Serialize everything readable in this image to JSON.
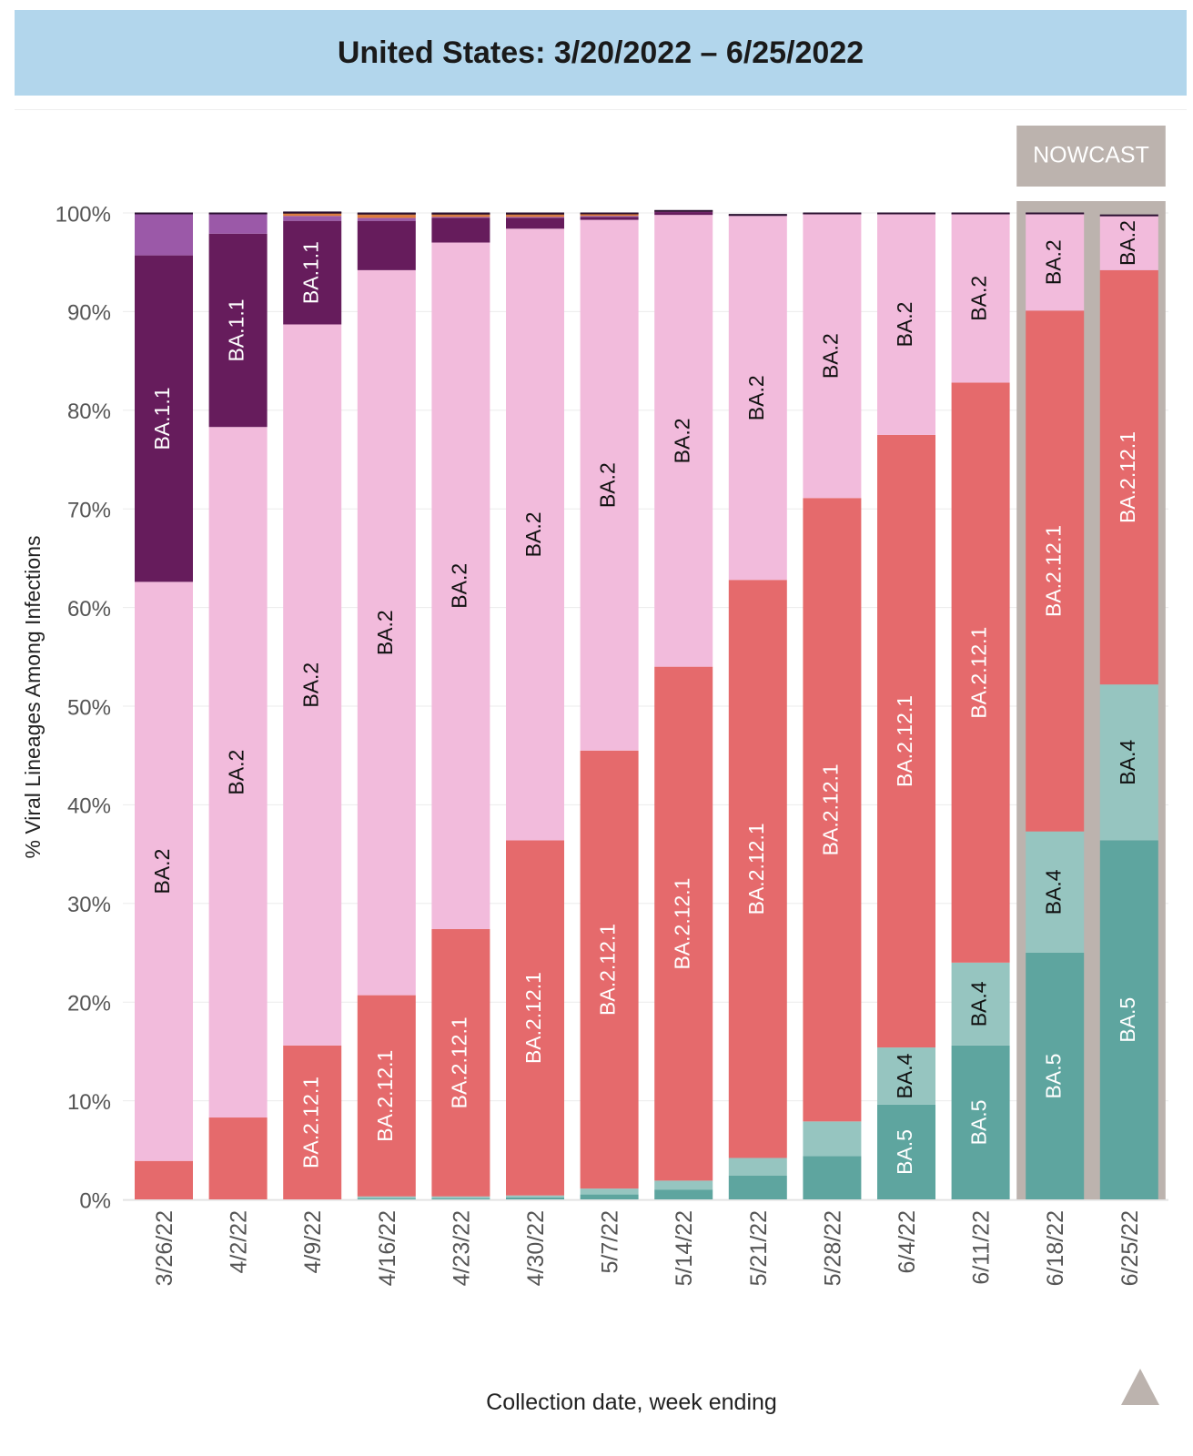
{
  "header": {
    "title": "United States: 3/20/2022 – 6/25/2022"
  },
  "nowcast_label": "NOWCAST",
  "scroll_button": {
    "icon": "triangle-up-icon"
  },
  "chart_data": {
    "type": "bar",
    "stacked": true,
    "ylabel": "% Viral Lineages Among Infections",
    "xlabel": "Collection date, week ending",
    "ylim": [
      0,
      100
    ],
    "yticks": [
      "0%",
      "10%",
      "20%",
      "30%",
      "40%",
      "50%",
      "60%",
      "70%",
      "80%",
      "90%",
      "100%"
    ],
    "categories": [
      "3/26/22",
      "4/2/22",
      "4/9/22",
      "4/16/22",
      "4/23/22",
      "4/30/22",
      "5/7/22",
      "5/14/22",
      "5/21/22",
      "5/28/22",
      "6/4/22",
      "6/11/22",
      "6/18/22",
      "6/25/22"
    ],
    "nowcast_categories": [
      "6/18/22",
      "6/25/22"
    ],
    "series": [
      {
        "name": "BA.5",
        "color": "#5ea59f",
        "label_color": "#ffffff",
        "values": [
          0,
          0,
          0,
          0.1,
          0.1,
          0.2,
          0.5,
          1.0,
          2.4,
          4.4,
          9.6,
          15.6,
          25.0,
          36.4
        ]
      },
      {
        "name": "BA.4",
        "color": "#96c5c0",
        "label_color": "#111111",
        "values": [
          0,
          0,
          0,
          0.2,
          0.2,
          0.2,
          0.6,
          0.9,
          1.8,
          3.5,
          5.8,
          8.4,
          12.3,
          15.8
        ]
      },
      {
        "name": "BA.2.12.1",
        "color": "#e56a6c",
        "label_color": "#ffffff",
        "values": [
          3.9,
          8.3,
          15.6,
          20.4,
          27.1,
          36.0,
          44.4,
          52.1,
          58.6,
          63.2,
          62.1,
          58.8,
          52.8,
          42.0
        ]
      },
      {
        "name": "BA.2",
        "color": "#f2bbdc",
        "label_color": "#111111",
        "values": [
          58.7,
          70.0,
          73.1,
          73.5,
          69.6,
          62.0,
          53.8,
          45.8,
          36.9,
          28.8,
          22.4,
          17.1,
          9.8,
          5.5
        ]
      },
      {
        "name": "BA.1.1",
        "color": "#661c5c",
        "label_color": "#ffffff",
        "values": [
          33.1,
          19.6,
          10.5,
          5.0,
          2.5,
          1.1,
          0.3,
          0.3,
          0.1,
          0.05,
          0.05,
          0.05,
          0.05,
          0.05
        ]
      },
      {
        "name": "",
        "color": "#9b59a8",
        "label_color": "#ffffff",
        "values": [
          4.2,
          2.0,
          0.5,
          0.3,
          0.1,
          0.1,
          0.1,
          0.05,
          0.05,
          0.05,
          0.05,
          0.05,
          0.05,
          0.05
        ]
      },
      {
        "name": "",
        "color": "#e07b39",
        "label_color": "#ffffff",
        "values": [
          0.05,
          0.05,
          0.2,
          0.3,
          0.2,
          0.2,
          0.2,
          0.05,
          0,
          0,
          0,
          0,
          0,
          0
        ]
      },
      {
        "name": "",
        "color": "#7a3f2e",
        "label_color": "#ffffff",
        "values": [
          0.05,
          0.05,
          0.2,
          0.2,
          0.2,
          0.2,
          0.1,
          0.05,
          0,
          0,
          0,
          0,
          0,
          0
        ]
      }
    ],
    "bar_labels": [
      {
        "series": "BA.5",
        "category": "6/4/22",
        "text": "BA.5"
      },
      {
        "series": "BA.5",
        "category": "6/11/22",
        "text": "BA.5"
      },
      {
        "series": "BA.5",
        "category": "6/18/22",
        "text": "BA.5"
      },
      {
        "series": "BA.5",
        "category": "6/25/22",
        "text": "BA.5"
      },
      {
        "series": "BA.4",
        "category": "6/4/22",
        "text": "BA.4"
      },
      {
        "series": "BA.4",
        "category": "6/11/22",
        "text": "BA.4"
      },
      {
        "series": "BA.4",
        "category": "6/18/22",
        "text": "BA.4"
      },
      {
        "series": "BA.4",
        "category": "6/25/22",
        "text": "BA.4"
      },
      {
        "series": "BA.2.12.1",
        "category": "4/9/22",
        "text": "BA.2.12.1"
      },
      {
        "series": "BA.2.12.1",
        "category": "4/16/22",
        "text": "BA.2.12.1"
      },
      {
        "series": "BA.2.12.1",
        "category": "4/23/22",
        "text": "BA.2.12.1"
      },
      {
        "series": "BA.2.12.1",
        "category": "4/30/22",
        "text": "BA.2.12.1"
      },
      {
        "series": "BA.2.12.1",
        "category": "5/7/22",
        "text": "BA.2.12.1"
      },
      {
        "series": "BA.2.12.1",
        "category": "5/14/22",
        "text": "BA.2.12.1"
      },
      {
        "series": "BA.2.12.1",
        "category": "5/21/22",
        "text": "BA.2.12.1"
      },
      {
        "series": "BA.2.12.1",
        "category": "5/28/22",
        "text": "BA.2.12.1"
      },
      {
        "series": "BA.2.12.1",
        "category": "6/4/22",
        "text": "BA.2.12.1"
      },
      {
        "series": "BA.2.12.1",
        "category": "6/11/22",
        "text": "BA.2.12.1"
      },
      {
        "series": "BA.2.12.1",
        "category": "6/18/22",
        "text": "BA.2.12.1"
      },
      {
        "series": "BA.2.12.1",
        "category": "6/25/22",
        "text": "BA.2.12.1"
      },
      {
        "series": "BA.2",
        "category": "3/26/22",
        "text": "BA.2"
      },
      {
        "series": "BA.2",
        "category": "4/2/22",
        "text": "BA.2"
      },
      {
        "series": "BA.2",
        "category": "4/9/22",
        "text": "BA.2"
      },
      {
        "series": "BA.2",
        "category": "4/16/22",
        "text": "BA.2"
      },
      {
        "series": "BA.2",
        "category": "4/23/22",
        "text": "BA.2"
      },
      {
        "series": "BA.2",
        "category": "4/30/22",
        "text": "BA.2"
      },
      {
        "series": "BA.2",
        "category": "5/7/22",
        "text": "BA.2"
      },
      {
        "series": "BA.2",
        "category": "5/14/22",
        "text": "BA.2"
      },
      {
        "series": "BA.2",
        "category": "5/21/22",
        "text": "BA.2"
      },
      {
        "series": "BA.2",
        "category": "5/28/22",
        "text": "BA.2"
      },
      {
        "series": "BA.2",
        "category": "6/4/22",
        "text": "BA.2"
      },
      {
        "series": "BA.2",
        "category": "6/11/22",
        "text": "BA.2"
      },
      {
        "series": "BA.2",
        "category": "6/18/22",
        "text": "BA.2"
      },
      {
        "series": "BA.2",
        "category": "6/25/22",
        "text": "BA.2"
      },
      {
        "series": "BA.1.1",
        "category": "3/26/22",
        "text": "BA.1.1"
      },
      {
        "series": "BA.1.1",
        "category": "4/2/22",
        "text": "BA.1.1"
      },
      {
        "series": "BA.1.1",
        "category": "4/9/22",
        "text": "BA.1.1"
      }
    ]
  }
}
